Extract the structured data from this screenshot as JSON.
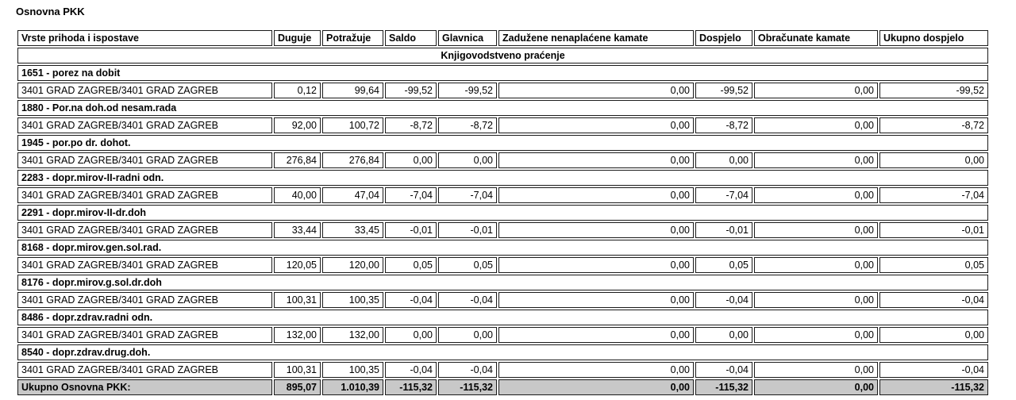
{
  "page_title": "Osnovna PKK",
  "colors": {
    "total_row_bg": "#c8c8c8",
    "border_color": "#1a1a1a"
  },
  "table": {
    "columns": [
      "Vrste prihoda i ispostave",
      "Duguje",
      "Potražuje",
      "Saldo",
      "Glavnica",
      "Zadužene nenaplaćene kamate",
      "Dospjelo",
      "Obračunate kamate",
      "Ukupno dospjelo"
    ],
    "section_label": "Knjigovodstveno praćenje",
    "groups": [
      {
        "label": "1651 - porez na dobit",
        "rows": [
          {
            "office": "3401 GRAD ZAGREB/3401 GRAD ZAGREB",
            "values": [
              "0,12",
              "99,64",
              "-99,52",
              "-99,52",
              "0,00",
              "-99,52",
              "0,00",
              "-99,52"
            ]
          }
        ]
      },
      {
        "label": "1880 - Por.na doh.od nesam.rada",
        "rows": [
          {
            "office": "3401 GRAD ZAGREB/3401 GRAD ZAGREB",
            "values": [
              "92,00",
              "100,72",
              "-8,72",
              "-8,72",
              "0,00",
              "-8,72",
              "0,00",
              "-8,72"
            ]
          }
        ]
      },
      {
        "label": "1945 - por.po dr. dohot.",
        "rows": [
          {
            "office": "3401 GRAD ZAGREB/3401 GRAD ZAGREB",
            "values": [
              "276,84",
              "276,84",
              "0,00",
              "0,00",
              "0,00",
              "0,00",
              "0,00",
              "0,00"
            ]
          }
        ]
      },
      {
        "label": "2283 - dopr.mirov-II-radni odn.",
        "rows": [
          {
            "office": "3401 GRAD ZAGREB/3401 GRAD ZAGREB",
            "values": [
              "40,00",
              "47,04",
              "-7,04",
              "-7,04",
              "0,00",
              "-7,04",
              "0,00",
              "-7,04"
            ]
          }
        ]
      },
      {
        "label": "2291 - dopr.mirov-II-dr.doh",
        "rows": [
          {
            "office": "3401 GRAD ZAGREB/3401 GRAD ZAGREB",
            "values": [
              "33,44",
              "33,45",
              "-0,01",
              "-0,01",
              "0,00",
              "-0,01",
              "0,00",
              "-0,01"
            ]
          }
        ]
      },
      {
        "label": "8168 - dopr.mirov.gen.sol.rad.",
        "rows": [
          {
            "office": "3401 GRAD ZAGREB/3401 GRAD ZAGREB",
            "values": [
              "120,05",
              "120,00",
              "0,05",
              "0,05",
              "0,00",
              "0,05",
              "0,00",
              "0,05"
            ]
          }
        ]
      },
      {
        "label": "8176 - dopr.mirov.g.sol.dr.doh",
        "rows": [
          {
            "office": "3401 GRAD ZAGREB/3401 GRAD ZAGREB",
            "values": [
              "100,31",
              "100,35",
              "-0,04",
              "-0,04",
              "0,00",
              "-0,04",
              "0,00",
              "-0,04"
            ]
          }
        ]
      },
      {
        "label": "8486 - dopr.zdrav.radni odn.",
        "rows": [
          {
            "office": "3401 GRAD ZAGREB/3401 GRAD ZAGREB",
            "values": [
              "132,00",
              "132,00",
              "0,00",
              "0,00",
              "0,00",
              "0,00",
              "0,00",
              "0,00"
            ]
          }
        ]
      },
      {
        "label": "8540 - dopr.zdrav.drug.doh.",
        "rows": [
          {
            "office": "3401 GRAD ZAGREB/3401 GRAD ZAGREB",
            "values": [
              "100,31",
              "100,35",
              "-0,04",
              "-0,04",
              "0,00",
              "-0,04",
              "0,00",
              "-0,04"
            ]
          }
        ]
      }
    ],
    "total": {
      "label": "Ukupno Osnovna PKK:",
      "values": [
        "895,07",
        "1.010,39",
        "-115,32",
        "-115,32",
        "0,00",
        "-115,32",
        "0,00",
        "-115,32"
      ]
    }
  }
}
